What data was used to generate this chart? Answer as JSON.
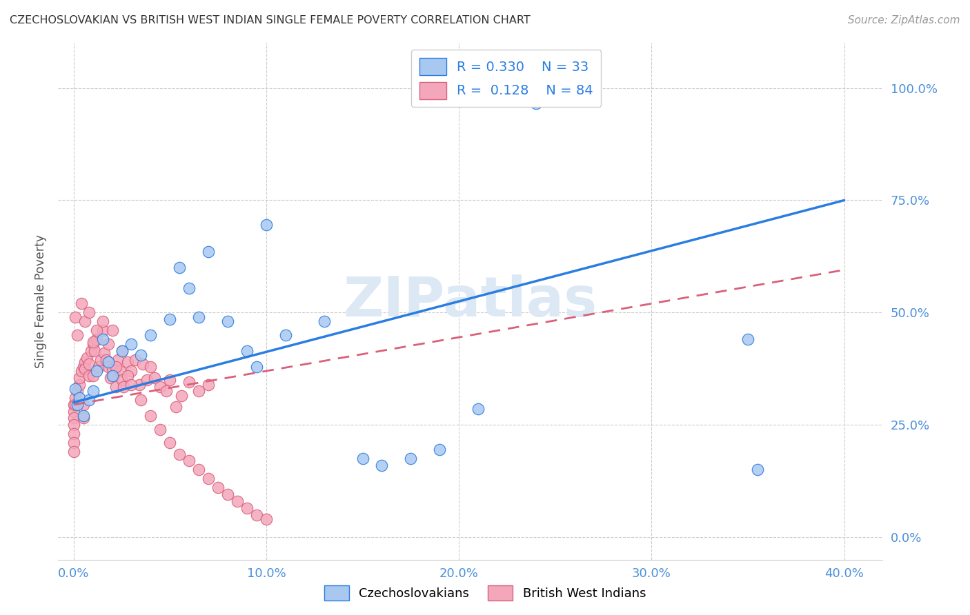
{
  "title": "CZECHOSLOVAKIAN VS BRITISH WEST INDIAN SINGLE FEMALE POVERTY CORRELATION CHART",
  "source": "Source: ZipAtlas.com",
  "ylabel": "Single Female Poverty",
  "xlabel_ticks": [
    "0.0%",
    "10.0%",
    "20.0%",
    "30.0%",
    "40.0%"
  ],
  "xlabel_vals": [
    0.0,
    0.1,
    0.2,
    0.3,
    0.4
  ],
  "ylabel_ticks": [
    "0.0%",
    "25.0%",
    "50.0%",
    "75.0%",
    "100.0%"
  ],
  "ylabel_vals": [
    0.0,
    0.25,
    0.5,
    0.75,
    1.0
  ],
  "xlim": [
    -0.008,
    0.42
  ],
  "ylim": [
    -0.05,
    1.1
  ],
  "blue_color": "#a8c8f0",
  "pink_color": "#f4a7bb",
  "blue_line_color": "#2a7de1",
  "pink_line_color": "#d9607a",
  "title_color": "#333333",
  "axis_label_color": "#555555",
  "tick_color": "#4a90d9",
  "watermark_color": "#dde8f5",
  "grid_color": "#cccccc",
  "background_color": "#ffffff",
  "czech_x": [
    0.001,
    0.002,
    0.003,
    0.005,
    0.008,
    0.01,
    0.012,
    0.015,
    0.018,
    0.02,
    0.025,
    0.03,
    0.035,
    0.04,
    0.05,
    0.055,
    0.06,
    0.065,
    0.07,
    0.08,
    0.09,
    0.095,
    0.1,
    0.11,
    0.13,
    0.15,
    0.16,
    0.175,
    0.19,
    0.21,
    0.24,
    0.35,
    0.355
  ],
  "czech_y": [
    0.33,
    0.295,
    0.31,
    0.27,
    0.305,
    0.325,
    0.37,
    0.44,
    0.39,
    0.36,
    0.415,
    0.43,
    0.405,
    0.45,
    0.485,
    0.6,
    0.555,
    0.49,
    0.635,
    0.48,
    0.415,
    0.38,
    0.695,
    0.45,
    0.48,
    0.175,
    0.16,
    0.175,
    0.195,
    0.285,
    0.965,
    0.44,
    0.15
  ],
  "bwi_x": [
    0.0,
    0.0,
    0.0,
    0.0,
    0.0,
    0.0,
    0.0,
    0.001,
    0.001,
    0.002,
    0.003,
    0.003,
    0.004,
    0.005,
    0.005,
    0.005,
    0.006,
    0.006,
    0.007,
    0.008,
    0.008,
    0.009,
    0.01,
    0.01,
    0.011,
    0.012,
    0.013,
    0.014,
    0.015,
    0.016,
    0.017,
    0.018,
    0.019,
    0.02,
    0.021,
    0.022,
    0.023,
    0.024,
    0.025,
    0.026,
    0.028,
    0.03,
    0.032,
    0.034,
    0.036,
    0.038,
    0.04,
    0.042,
    0.045,
    0.048,
    0.05,
    0.053,
    0.056,
    0.06,
    0.065,
    0.07,
    0.001,
    0.002,
    0.004,
    0.006,
    0.008,
    0.01,
    0.012,
    0.015,
    0.018,
    0.02,
    0.022,
    0.025,
    0.028,
    0.03,
    0.035,
    0.04,
    0.045,
    0.05,
    0.055,
    0.06,
    0.065,
    0.07,
    0.075,
    0.08,
    0.085,
    0.09,
    0.095,
    0.1
  ],
  "bwi_y": [
    0.295,
    0.28,
    0.265,
    0.25,
    0.23,
    0.21,
    0.19,
    0.31,
    0.295,
    0.325,
    0.34,
    0.355,
    0.37,
    0.38,
    0.295,
    0.265,
    0.39,
    0.375,
    0.4,
    0.385,
    0.36,
    0.415,
    0.43,
    0.36,
    0.415,
    0.44,
    0.38,
    0.395,
    0.46,
    0.41,
    0.395,
    0.38,
    0.355,
    0.375,
    0.36,
    0.335,
    0.395,
    0.37,
    0.35,
    0.335,
    0.39,
    0.37,
    0.395,
    0.34,
    0.385,
    0.35,
    0.38,
    0.355,
    0.335,
    0.325,
    0.35,
    0.29,
    0.315,
    0.345,
    0.325,
    0.34,
    0.49,
    0.45,
    0.52,
    0.48,
    0.5,
    0.435,
    0.46,
    0.48,
    0.43,
    0.46,
    0.38,
    0.415,
    0.36,
    0.34,
    0.305,
    0.27,
    0.24,
    0.21,
    0.185,
    0.17,
    0.15,
    0.13,
    0.11,
    0.095,
    0.08,
    0.065,
    0.05,
    0.04
  ],
  "czech_line_x": [
    0.0,
    0.4
  ],
  "czech_line_y": [
    0.3,
    0.75
  ],
  "bwi_line_x": [
    0.0,
    0.4
  ],
  "bwi_line_y": [
    0.295,
    0.595
  ]
}
